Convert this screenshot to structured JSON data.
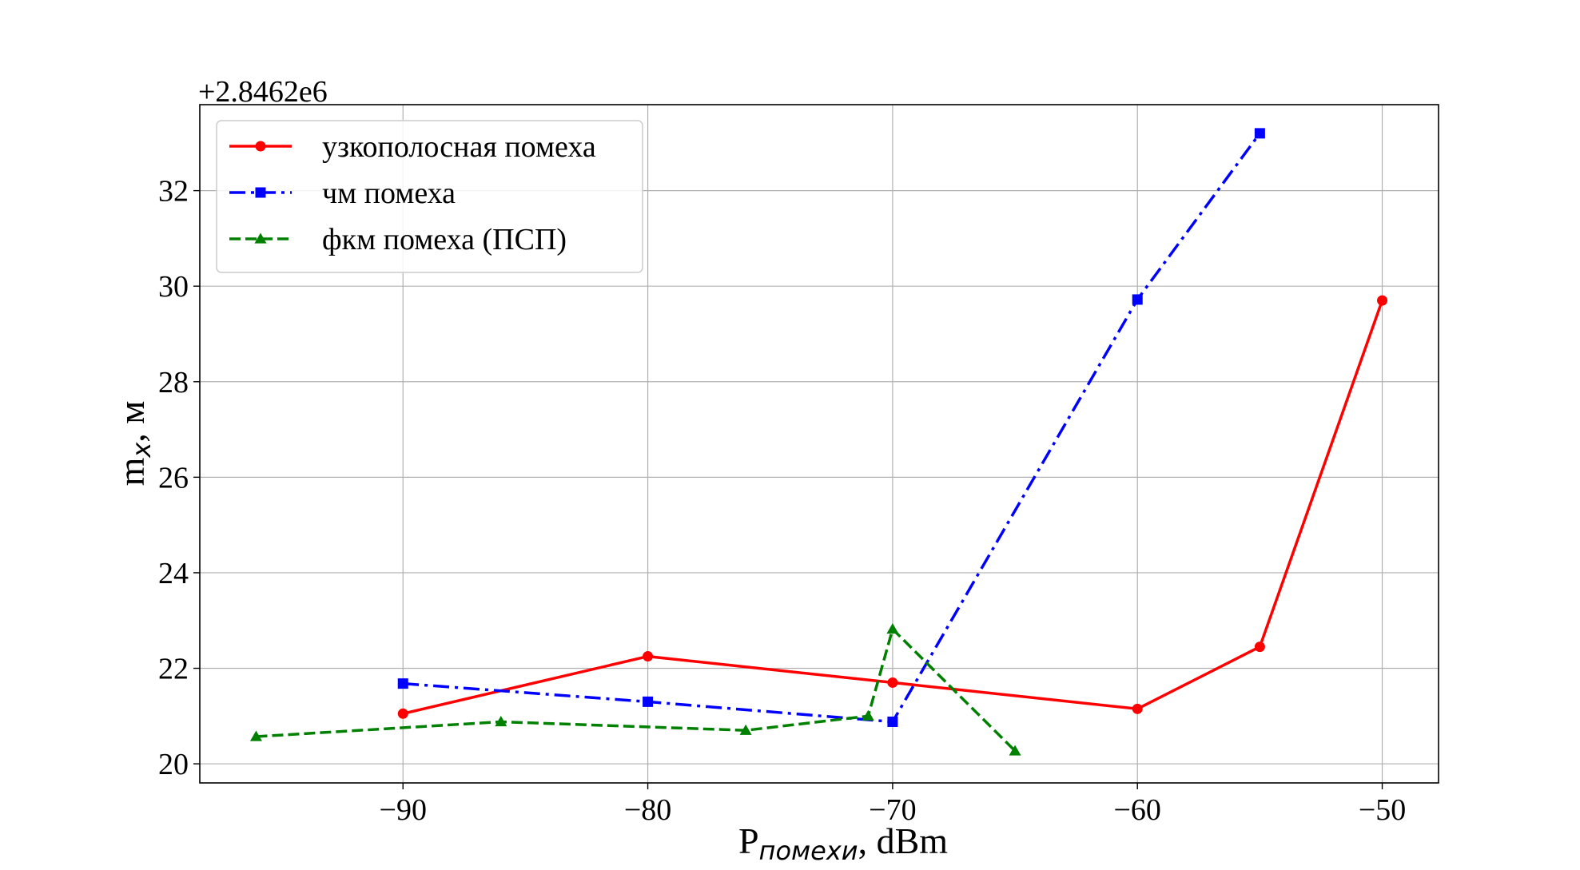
{
  "chart_data": {
    "type": "line",
    "offset_label": "+2.8462e6",
    "xlabel_main": "P",
    "xlabel_sub": "помехи",
    "xlabel_rest": ", dBm",
    "ylabel_main": "m",
    "ylabel_sub": "x",
    "ylabel_rest": ", м",
    "xlim": [
      -98.3,
      -47.7
    ],
    "ylim": [
      19.6,
      33.8
    ],
    "xticks": [
      -90,
      -80,
      -70,
      -60,
      -50
    ],
    "xtick_labels": [
      "−90",
      "−80",
      "−70",
      "−60",
      "−50"
    ],
    "yticks": [
      20,
      22,
      24,
      26,
      28,
      30,
      32
    ],
    "ytick_labels": [
      "20",
      "22",
      "24",
      "26",
      "28",
      "30",
      "32"
    ],
    "grid": true,
    "legend_position": "top-left",
    "series": [
      {
        "name": "узкополосная помеха",
        "color": "#ff0000",
        "line_style": "solid",
        "marker": "circle",
        "x": [
          -90,
          -80,
          -70,
          -60,
          -55,
          -50
        ],
        "y": [
          21.05,
          22.25,
          21.7,
          21.15,
          22.45,
          29.7
        ]
      },
      {
        "name": "чм помеха",
        "color": "#0000ff",
        "line_style": "dashdot",
        "marker": "square",
        "x": [
          -90,
          -80,
          -70,
          -60,
          -55
        ],
        "y": [
          21.68,
          21.3,
          20.88,
          29.72,
          33.2
        ]
      },
      {
        "name": "фкм помеха (ПСП)",
        "color": "#008000",
        "line_style": "dashed",
        "marker": "triangle",
        "x": [
          -96,
          -86,
          -76,
          -71,
          -70,
          -65
        ],
        "y": [
          20.57,
          20.88,
          20.7,
          21.0,
          22.82,
          20.27
        ]
      }
    ]
  }
}
